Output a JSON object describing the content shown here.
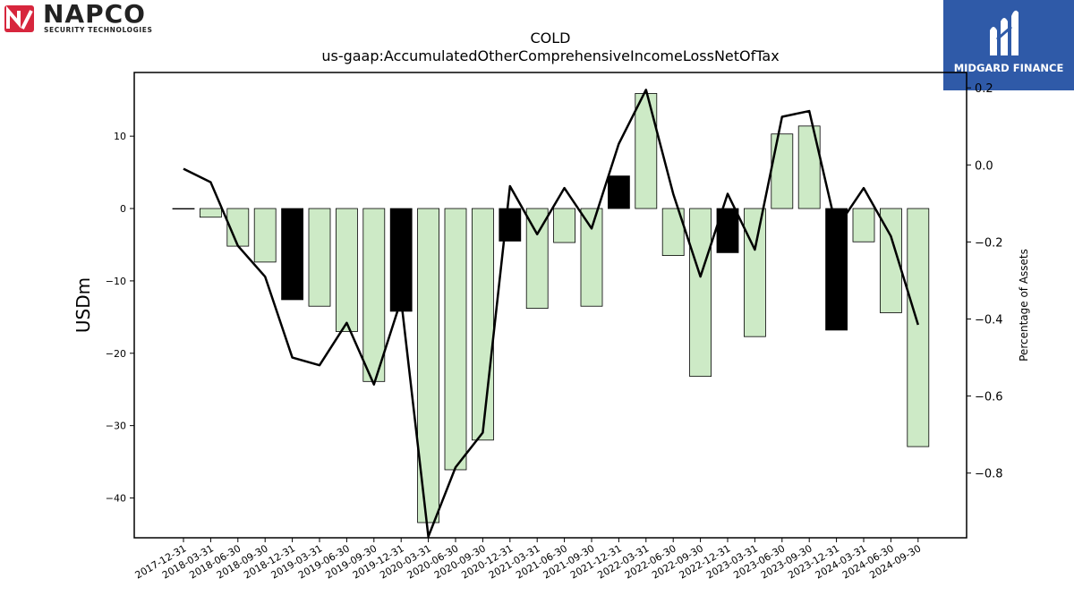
{
  "logos": {
    "left_brand": "NAPCO",
    "left_tagline": "SECURITY TECHNOLOGIES",
    "right_brand": "MIDGARD FINANCE"
  },
  "chart_data": {
    "type": "bar",
    "title": "COLD",
    "subtitle": "us-gaap:AccumulatedOtherComprehensiveIncomeLossNetOfTax",
    "ylabel": "USDm",
    "y2label": "Percentage of Assets",
    "ylim": [
      -45.5,
      18.8
    ],
    "y2lim": [
      -0.968,
      0.24
    ],
    "yticks": [
      -40,
      -30,
      -20,
      -10,
      0,
      10
    ],
    "y2ticks": [
      -0.8,
      -0.6,
      -0.4,
      -0.2,
      0.0,
      0.2
    ],
    "categories": [
      "2017-12-31",
      "2018-03-31",
      "2018-06-30",
      "2018-09-30",
      "2018-12-31",
      "2019-03-31",
      "2019-06-30",
      "2019-09-30",
      "2019-12-31",
      "2020-03-31",
      "2020-06-30",
      "2020-09-30",
      "2020-12-31",
      "2021-03-31",
      "2021-06-30",
      "2021-09-30",
      "2021-12-31",
      "2022-03-31",
      "2022-06-30",
      "2022-09-30",
      "2022-12-31",
      "2023-03-31",
      "2023-06-30",
      "2023-09-30",
      "2023-12-31",
      "2024-03-31",
      "2024-06-30",
      "2024-09-30"
    ],
    "series": [
      {
        "values": [
          0,
          -1.2,
          -5.2,
          -7.4,
          -12.6,
          -13.5,
          -17.0,
          -23.9,
          -14.2,
          -43.4,
          -36.1,
          -32.0,
          -4.5,
          -13.8,
          -4.7,
          -13.5,
          4.5,
          15.9,
          -6.5,
          -23.2,
          -6.1,
          -17.7,
          10.3,
          11.4,
          -16.8,
          -4.6,
          -14.4,
          -32.9
        ]
      },
      {
        "axis": "right",
        "values": [
          -0.01,
          -0.045,
          -0.21,
          -0.29,
          -0.5,
          -0.52,
          -0.41,
          -0.57,
          -0.35,
          -0.965,
          -0.785,
          -0.695,
          -0.055,
          -0.18,
          -0.06,
          -0.165,
          0.055,
          0.195,
          -0.075,
          -0.29,
          -0.075,
          -0.22,
          0.125,
          0.14,
          -0.165,
          -0.06,
          -0.185,
          -0.415
        ]
      }
    ],
    "bar_colors": [
      "#000000",
      "#cdeac6",
      "#cdeac6",
      "#cdeac6",
      "#000000",
      "#cdeac6",
      "#cdeac6",
      "#cdeac6",
      "#000000",
      "#cdeac6",
      "#cdeac6",
      "#cdeac6",
      "#000000",
      "#cdeac6",
      "#cdeac6",
      "#cdeac6",
      "#000000",
      "#cdeac6",
      "#cdeac6",
      "#cdeac6",
      "#000000",
      "#cdeac6",
      "#cdeac6",
      "#cdeac6",
      "#000000",
      "#cdeac6",
      "#cdeac6",
      "#cdeac6"
    ],
    "line_color": "#000000",
    "grid": false
  }
}
